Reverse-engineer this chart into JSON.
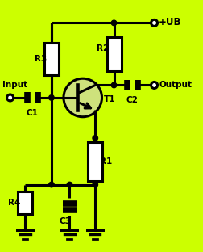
{
  "bg_color": "#ccff00",
  "line_color": "#000000",
  "lw": 2.2,
  "fig_width": 2.53,
  "fig_height": 3.12,
  "dpi": 100,
  "xlim": [
    0,
    10
  ],
  "ylim": [
    0,
    12.2
  ],
  "labels": {
    "R1": "R1",
    "R2": "R2",
    "R3": "R3",
    "R4": "R4",
    "C1": "C1",
    "C2": "C2",
    "C3": "C3",
    "T1": "T1",
    "UB": "+UB",
    "Input": "Input",
    "Output": "Output"
  },
  "font_size": 7.5
}
